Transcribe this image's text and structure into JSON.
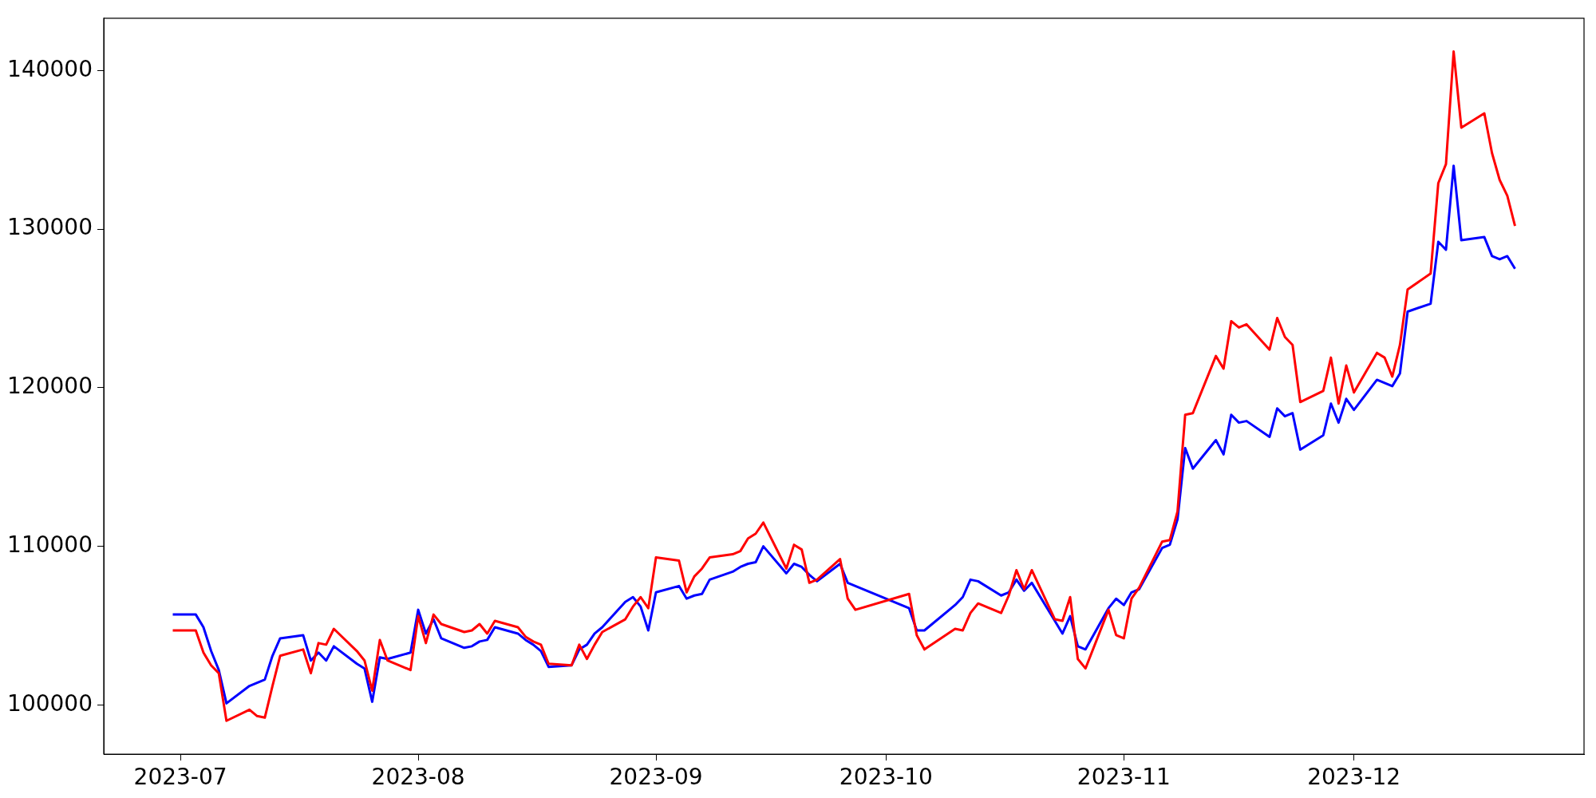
{
  "chart_data": {
    "type": "line",
    "x": [
      "2023-06-30",
      "2023-07-03",
      "2023-07-04",
      "2023-07-05",
      "2023-07-06",
      "2023-07-07",
      "2023-07-10",
      "2023-07-11",
      "2023-07-12",
      "2023-07-13",
      "2023-07-14",
      "2023-07-17",
      "2023-07-18",
      "2023-07-19",
      "2023-07-20",
      "2023-07-21",
      "2023-07-24",
      "2023-07-25",
      "2023-07-26",
      "2023-07-27",
      "2023-07-28",
      "2023-07-31",
      "2023-08-01",
      "2023-08-02",
      "2023-08-03",
      "2023-08-04",
      "2023-08-07",
      "2023-08-08",
      "2023-08-09",
      "2023-08-10",
      "2023-08-11",
      "2023-08-14",
      "2023-08-15",
      "2023-08-16",
      "2023-08-17",
      "2023-08-18",
      "2023-08-21",
      "2023-08-22",
      "2023-08-23",
      "2023-08-24",
      "2023-08-25",
      "2023-08-28",
      "2023-08-29",
      "2023-08-30",
      "2023-08-31",
      "2023-09-01",
      "2023-09-04",
      "2023-09-05",
      "2023-09-06",
      "2023-09-07",
      "2023-09-08",
      "2023-09-11",
      "2023-09-12",
      "2023-09-13",
      "2023-09-14",
      "2023-09-15",
      "2023-09-18",
      "2023-09-19",
      "2023-09-20",
      "2023-09-21",
      "2023-09-22",
      "2023-09-25",
      "2023-09-26",
      "2023-09-27",
      "2023-10-04",
      "2023-10-05",
      "2023-10-06",
      "2023-10-10",
      "2023-10-11",
      "2023-10-12",
      "2023-10-13",
      "2023-10-16",
      "2023-10-17",
      "2023-10-18",
      "2023-10-19",
      "2023-10-20",
      "2023-10-23",
      "2023-10-24",
      "2023-10-25",
      "2023-10-26",
      "2023-10-27",
      "2023-10-30",
      "2023-10-31",
      "2023-11-01",
      "2023-11-02",
      "2023-11-03",
      "2023-11-06",
      "2023-11-07",
      "2023-11-08",
      "2023-11-09",
      "2023-11-10",
      "2023-11-13",
      "2023-11-14",
      "2023-11-15",
      "2023-11-16",
      "2023-11-17",
      "2023-11-20",
      "2023-11-21",
      "2023-11-22",
      "2023-11-23",
      "2023-11-24",
      "2023-11-27",
      "2023-11-28",
      "2023-11-29",
      "2023-11-30",
      "2023-12-01",
      "2023-12-04",
      "2023-12-05",
      "2023-12-06",
      "2023-12-07",
      "2023-12-08",
      "2023-12-11",
      "2023-12-12",
      "2023-12-13",
      "2023-12-14",
      "2023-12-15",
      "2023-12-18",
      "2023-12-19",
      "2023-12-20",
      "2023-12-21",
      "2023-12-22"
    ],
    "series": [
      {
        "color": "#ff0000",
        "values": [
          104700,
          104700,
          103300,
          102500,
          102000,
          99000,
          99700,
          99300,
          99200,
          101200,
          103100,
          103500,
          102000,
          103900,
          103800,
          104800,
          103400,
          102800,
          100900,
          104100,
          102800,
          102200,
          105600,
          103900,
          105700,
          105100,
          104600,
          104700,
          105100,
          104500,
          105300,
          104900,
          104300,
          104000,
          103800,
          102600,
          102500,
          103800,
          102900,
          103800,
          104600,
          105400,
          106200,
          106800,
          106100,
          109300,
          109100,
          107100,
          108100,
          108600,
          109300,
          109500,
          109700,
          110500,
          110800,
          111500,
          108600,
          110100,
          109800,
          107700,
          107900,
          109200,
          106700,
          106000,
          107000,
          104400,
          103500,
          104800,
          104700,
          105800,
          106400,
          105800,
          106900,
          108500,
          107300,
          108500,
          105400,
          105300,
          106800,
          102900,
          102300,
          106000,
          104400,
          104200,
          106700,
          107400,
          110300,
          110400,
          112200,
          118300,
          118400,
          122000,
          121200,
          124200,
          123800,
          124000,
          122400,
          124400,
          123200,
          122700,
          119100,
          119800,
          121900,
          119000,
          121400,
          119700,
          122200,
          121900,
          120700,
          122700,
          126200,
          127200,
          132900,
          134100,
          141200,
          136400,
          137300,
          134800,
          133100,
          132100,
          130200
        ]
      },
      {
        "color": "#0000ff",
        "values": [
          105700,
          105700,
          104900,
          103400,
          102200,
          100100,
          101200,
          101400,
          101600,
          103100,
          104200,
          104400,
          102800,
          103300,
          102800,
          103700,
          102600,
          102300,
          100200,
          103000,
          102900,
          103300,
          106000,
          104500,
          105400,
          104200,
          103600,
          103700,
          104000,
          104100,
          104900,
          104500,
          104100,
          103800,
          103400,
          102400,
          102500,
          103500,
          103800,
          104500,
          104900,
          106500,
          106800,
          106200,
          104700,
          107100,
          107500,
          106700,
          106900,
          107000,
          107900,
          108400,
          108700,
          108900,
          109000,
          110000,
          108300,
          108900,
          108700,
          108200,
          107800,
          108900,
          107700,
          107500,
          106100,
          104700,
          104700,
          106300,
          106800,
          107900,
          107800,
          106900,
          107100,
          107900,
          107200,
          107700,
          105300,
          104500,
          105600,
          103700,
          103500,
          106100,
          106700,
          106300,
          107100,
          107300,
          109900,
          110100,
          111700,
          116200,
          114900,
          116700,
          115800,
          118300,
          117800,
          117900,
          116900,
          118700,
          118200,
          118400,
          116100,
          117000,
          119000,
          117800,
          119300,
          118600,
          120500,
          120300,
          120100,
          120900,
          124800,
          125300,
          129200,
          128700,
          134000,
          129300,
          129500,
          128300,
          128100,
          128300,
          127500
        ]
      }
    ],
    "xlim": [
      "2023-06-21",
      "2023-12-31"
    ],
    "xticks": [
      "2023-07",
      "2023-08",
      "2023-09",
      "2023-10",
      "2023-11",
      "2023-12"
    ],
    "ylim": [
      96900,
      143300
    ],
    "yticks": [
      100000,
      110000,
      120000,
      130000,
      140000
    ],
    "legend": false,
    "grid": false
  }
}
